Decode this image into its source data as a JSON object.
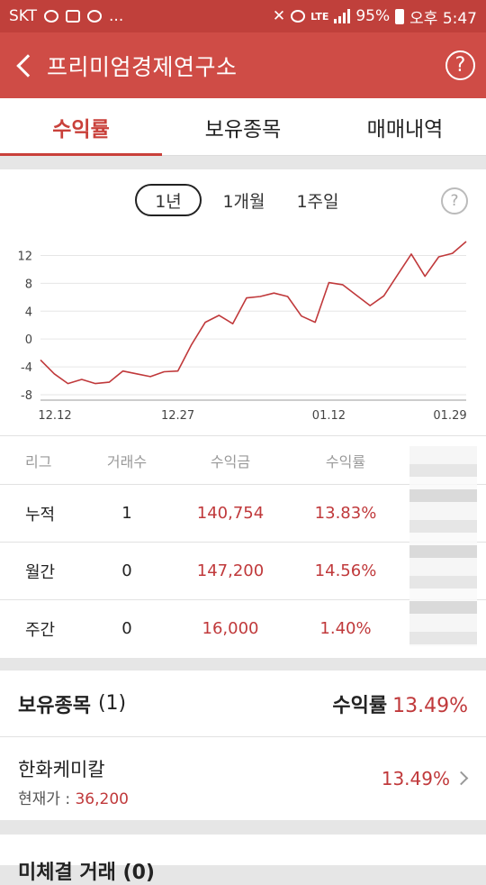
{
  "status_bar": {
    "carrier": "SKT",
    "more": "...",
    "lte": "LTE",
    "battery": "95%",
    "time": "오후 5:47"
  },
  "app_bar": {
    "title": "프리미엄경제연구소",
    "help_label": "?"
  },
  "tabs": [
    {
      "label": "수익률",
      "active": true
    },
    {
      "label": "보유종목",
      "active": false
    },
    {
      "label": "매매내역",
      "active": false
    }
  ],
  "periods": [
    {
      "label": "1년",
      "selected": true
    },
    {
      "label": "1개월",
      "selected": false
    },
    {
      "label": "1주일",
      "selected": false
    }
  ],
  "chart_help": "?",
  "chart_data": {
    "type": "line",
    "x_labels": [
      "12.12",
      "12.27",
      "01.12",
      "01.29"
    ],
    "y_ticks": [
      12,
      8,
      4,
      0,
      -4,
      -8
    ],
    "ylim": [
      -8,
      14
    ],
    "line_color": "#c0393b",
    "grid": true,
    "values": [
      -3,
      -5,
      -6.4,
      -5.8,
      -6.4,
      -6.2,
      -4.6,
      -5.0,
      -5.4,
      -4.7,
      -4.6,
      -0.8,
      2.4,
      3.4,
      2.2,
      5.9,
      6.1,
      6.6,
      6.1,
      3.3,
      2.4,
      8.1,
      7.8,
      6.3,
      4.8,
      6.2,
      9.2,
      12.2,
      9.0,
      11.8,
      12.3,
      14.0
    ]
  },
  "stats_table": {
    "headers": [
      "리그",
      "거래수",
      "수익금",
      "수익률"
    ],
    "rows": [
      {
        "league": "누적",
        "trades": "1",
        "profit": "140,754",
        "rate": "13.83%"
      },
      {
        "league": "월간",
        "trades": "0",
        "profit": "147,200",
        "rate": "14.56%"
      },
      {
        "league": "주간",
        "trades": "0",
        "profit": "16,000",
        "rate": "1.40%"
      }
    ]
  },
  "holdings": {
    "title": "보유종목",
    "count": "(1)",
    "rate_label": "수익률",
    "rate_value": "13.49%",
    "items": [
      {
        "name": "한화케미칼",
        "price_label": "현재가 : ",
        "price": "36,200",
        "rate": "13.49%"
      }
    ]
  },
  "next_section": {
    "title": "미체결 거래 (0)"
  },
  "colors": {
    "primary": "#cf4c46",
    "status_bar": "#c0403b",
    "accent_red": "#c0393b"
  }
}
